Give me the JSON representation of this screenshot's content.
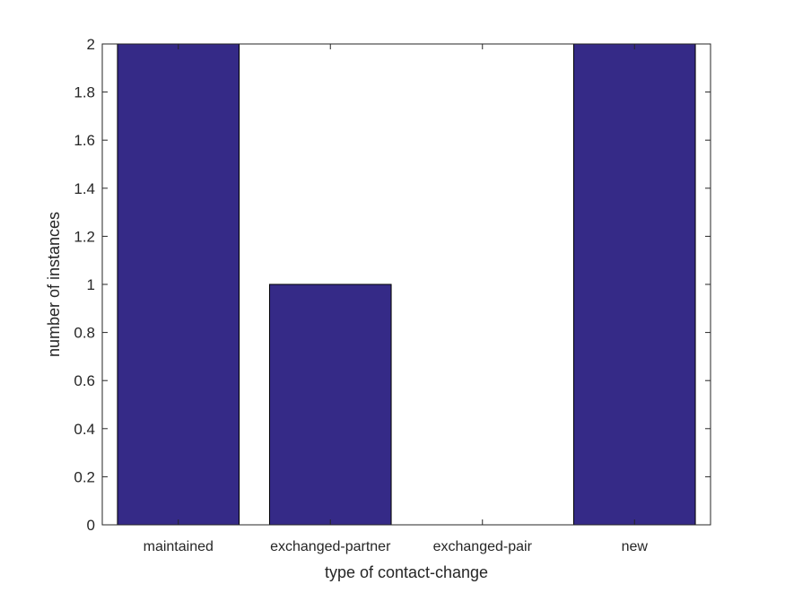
{
  "chart_data": {
    "type": "bar",
    "categories": [
      "maintained",
      "exchanged-partner",
      "exchanged-pair",
      "new"
    ],
    "values": [
      2,
      1,
      0,
      2
    ],
    "title": "",
    "xlabel": "type of contact-change",
    "ylabel": "number of instances",
    "ylim": [
      0,
      2
    ],
    "yticks": [
      "0",
      "0.2",
      "0.4",
      "0.6",
      "0.8",
      "1",
      "1.2",
      "1.4",
      "1.6",
      "1.8",
      "2"
    ],
    "grid": false,
    "bar_color": "#352a87"
  }
}
